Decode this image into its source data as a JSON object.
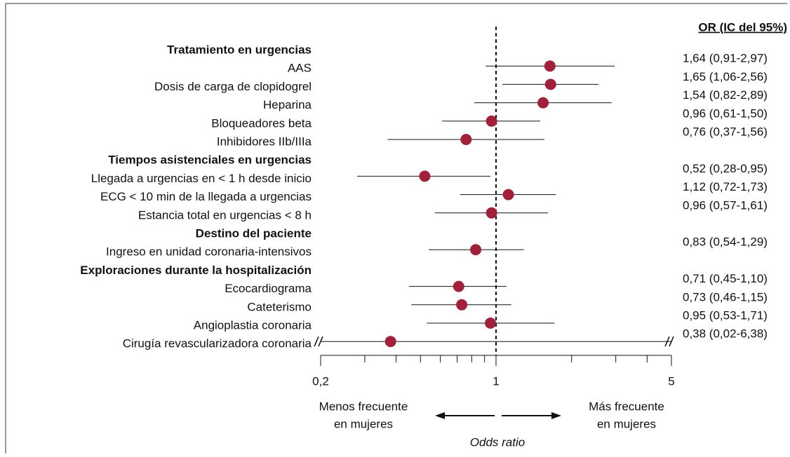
{
  "chart_data": {
    "type": "forest",
    "column_header": "OR (IC del 95%)",
    "x_label": "Odds ratio",
    "left_annotation": [
      "Menos frecuente",
      "en mujeres"
    ],
    "right_annotation": [
      "Más frecuente",
      "en mujeres"
    ],
    "xscale": "log",
    "xlim": [
      0.2,
      5
    ],
    "xticks": [
      {
        "value": 0.2,
        "label": "0,2"
      },
      1,
      5
    ],
    "xminorticks": [
      0.3,
      0.4,
      0.5,
      0.6,
      0.7,
      0.8,
      0.9,
      2,
      3,
      4
    ],
    "reference_line": 1,
    "color": "#a1213a",
    "rows": [
      {
        "label": "Tratamiento en urgencias",
        "header": true
      },
      {
        "label": "AAS",
        "value": 1.64,
        "low": 0.91,
        "high": 2.97,
        "value_label": "1,64 (0,91-2,97)"
      },
      {
        "label": "Dosis de carga de clopidogrel",
        "value": 1.65,
        "low": 1.06,
        "high": 2.56,
        "value_label": "1,65 (1,06-2,56)"
      },
      {
        "label": "Heparina",
        "value": 1.54,
        "low": 0.82,
        "high": 2.89,
        "value_label": "1,54 (0,82-2,89)"
      },
      {
        "label": "Bloqueadores beta",
        "value": 0.96,
        "low": 0.61,
        "high": 1.5,
        "value_label": "0,96 (0,61-1,50)"
      },
      {
        "label": "Inhibidores IIb/IIIa",
        "value": 0.76,
        "low": 0.37,
        "high": 1.56,
        "value_label": "0,76 (0,37-1,56)"
      },
      {
        "label": "Tiempos asistenciales en urgencias",
        "header": true
      },
      {
        "label": "Llegada a urgencias en < 1 h desde inicio",
        "value": 0.52,
        "low": 0.28,
        "high": 0.95,
        "value_label": "0,52 (0,28-0,95)"
      },
      {
        "label": "ECG < 10 min de la llegada a urgencias",
        "value": 1.12,
        "low": 0.72,
        "high": 1.73,
        "value_label": "1,12 (0,72-1,73)"
      },
      {
        "label": "Estancia total en urgencias < 8 h",
        "value": 0.96,
        "low": 0.57,
        "high": 1.61,
        "value_label": "0,96 (0,57-1,61)"
      },
      {
        "label": "Destino del paciente",
        "header": true
      },
      {
        "label": "Ingreso en unidad coronaria-intensivos",
        "value": 0.83,
        "low": 0.54,
        "high": 1.29,
        "value_label": "0,83 (0,54-1,29)"
      },
      {
        "label": "Exploraciones durante la hospitalización",
        "header": true
      },
      {
        "label": "Ecocardiograma",
        "value": 0.71,
        "low": 0.45,
        "high": 1.1,
        "value_label": "0,71 (0,45-1,10)"
      },
      {
        "label": "Cateterismo",
        "value": 0.73,
        "low": 0.46,
        "high": 1.15,
        "value_label": "0,73 (0,46-1,15)"
      },
      {
        "label": "Angioplastia coronaria",
        "value": 0.95,
        "low": 0.53,
        "high": 1.71,
        "value_label": "0,95 (0,53-1,71)"
      },
      {
        "label": "Cirugía revascularizadora coronaria",
        "value": 0.38,
        "low": 0.02,
        "high": 6.38,
        "value_label": "0,38 (0,02-6,38)"
      }
    ]
  }
}
